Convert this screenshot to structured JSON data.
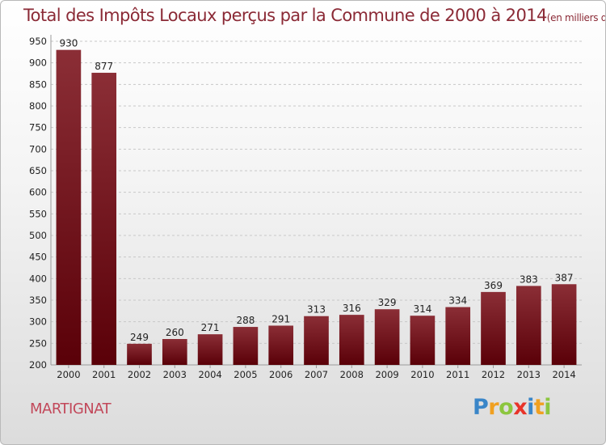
{
  "title": {
    "main": "Total des Impôts Locaux perçus par la Commune de 2000 à 2014",
    "unit": "(en milliers d'€)"
  },
  "commune": "MARTIGNAT",
  "logo": {
    "letters": [
      "P",
      "r",
      "o",
      "x",
      "i",
      "t",
      "i"
    ],
    "colors": [
      "#3a86c8",
      "#f0a020",
      "#8cc63f",
      "#e8342a",
      "#3a86c8",
      "#f0a020",
      "#8cc63f"
    ]
  },
  "colors": {
    "bar_top": "#8b2e36",
    "bar_bottom": "#5a0008",
    "axis_text": "#222222",
    "grid": "#c8c8c8"
  },
  "chart_data": {
    "type": "bar",
    "title": "Total des Impôts Locaux perçus par la Commune de 2000 à 2014",
    "xlabel": "",
    "ylabel": "",
    "categories": [
      "2000",
      "2001",
      "2002",
      "2003",
      "2004",
      "2005",
      "2006",
      "2007",
      "2008",
      "2009",
      "2010",
      "2011",
      "2012",
      "2013",
      "2014"
    ],
    "values": [
      930,
      877,
      249,
      260,
      271,
      288,
      291,
      313,
      316,
      329,
      314,
      334,
      369,
      383,
      387
    ],
    "ylim": [
      200,
      950
    ],
    "yticks": [
      200,
      250,
      300,
      350,
      400,
      450,
      500,
      550,
      600,
      650,
      700,
      750,
      800,
      850,
      900,
      950
    ],
    "grid": true,
    "data_labels": true
  }
}
